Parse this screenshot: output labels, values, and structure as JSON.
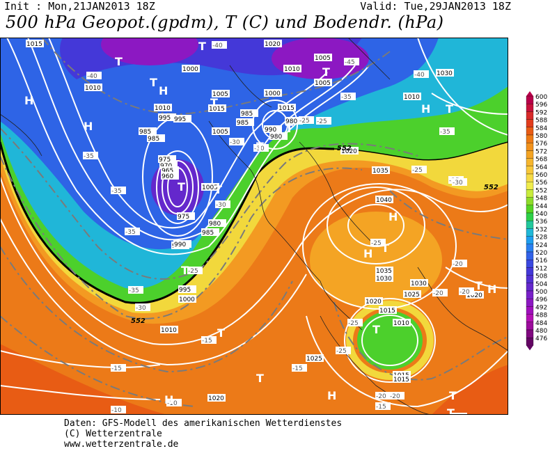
{
  "header": {
    "init": "Init : Mon,21JAN2013 18Z",
    "valid": "Valid: Tue,29JAN2013 18Z",
    "title": "500 hPa Geopot.(gpdm), T (C) und Bodendr. (hPa)"
  },
  "footer": {
    "line1": "Daten: GFS-Modell des amerikanischen Wetterdienstes",
    "line2": "(C) Wetterzentrale",
    "line3": "www.wetterzentrale.de"
  },
  "legend": {
    "values": [
      "600",
      "596",
      "592",
      "588",
      "584",
      "580",
      "576",
      "572",
      "568",
      "564",
      "560",
      "556",
      "552",
      "548",
      "544",
      "540",
      "536",
      "532",
      "528",
      "524",
      "520",
      "516",
      "512",
      "508",
      "504",
      "500",
      "496",
      "492",
      "488",
      "484",
      "480",
      "476"
    ],
    "colors": [
      "#b8004a",
      "#c8103c",
      "#d82a2a",
      "#e23c1c",
      "#e85c14",
      "#ee7a14",
      "#f2921c",
      "#f4a424",
      "#f6b62e",
      "#f8c83a",
      "#f6da46",
      "#f0ec4c",
      "#c8ec3c",
      "#8edc2a",
      "#56d424",
      "#2ed048",
      "#22c89c",
      "#20b8d8",
      "#1e9ef0",
      "#2a80f0",
      "#3262e8",
      "#3a48e0",
      "#4438d8",
      "#5230d2",
      "#6428cc",
      "#7820c8",
      "#8c18c2",
      "#a010bc",
      "#b410b4",
      "#9c0c9c",
      "#800880",
      "#640464"
    ]
  },
  "map": {
    "pressure_labels": [
      "1015",
      "1020",
      "1005",
      "1010",
      "1000",
      "1010",
      "1005",
      "1030",
      "1010",
      "1005",
      "1015",
      "995",
      "985",
      "1015",
      "985",
      "990",
      "980",
      "985",
      "1005",
      "995",
      "985",
      "980",
      "975",
      "970",
      "965",
      "960",
      "975",
      "980",
      "985",
      "990",
      "1010",
      "1000",
      "1005",
      "1020",
      "1035",
      "1040",
      "1035",
      "1030",
      "1030",
      "1025",
      "1020",
      "1020",
      "1015",
      "1010",
      "1015",
      "1015",
      "1025",
      "1010",
      "1020",
      "990",
      "995",
      "1000"
    ],
    "temp_labels": [
      "-40",
      "-45",
      "-40",
      "-40",
      "-35",
      "-35",
      "-35",
      "-30",
      "-30",
      "-25",
      "-25",
      "-25",
      "-30",
      "-35",
      "-35",
      "-25",
      "-20",
      "-20",
      "-20",
      "-25",
      "-25",
      "-15",
      "-15",
      "-15",
      "-10",
      "-10",
      "-20",
      "-15",
      "-25",
      "-20",
      "-30",
      "-35",
      "-30",
      "-25",
      "-10"
    ],
    "geo_labels": [
      "552",
      "552",
      "552"
    ],
    "high_symbol": "H",
    "low_symbol": "T"
  }
}
